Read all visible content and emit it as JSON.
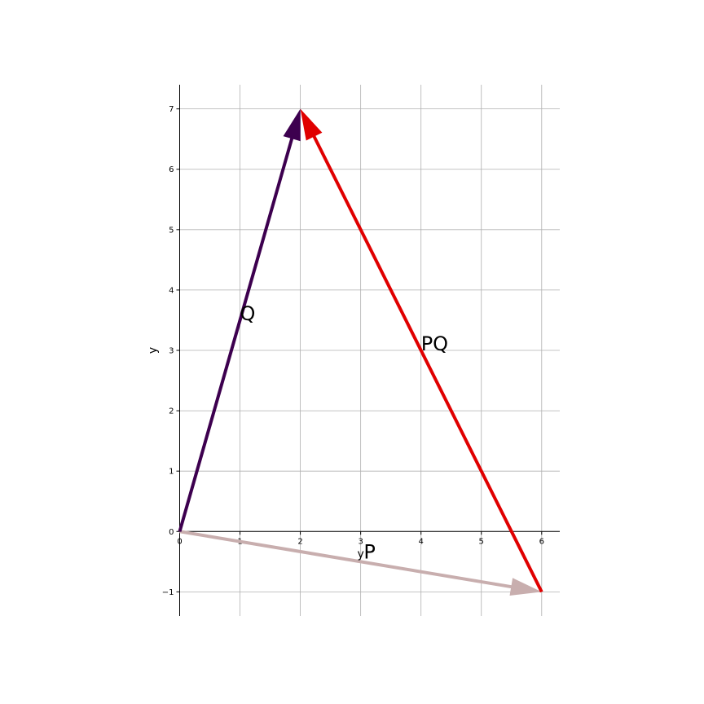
{
  "chart_data": {
    "type": "vector",
    "title": "",
    "xlabel": "y",
    "ylabel": "y",
    "xlim": [
      0,
      6.3
    ],
    "ylim": [
      -1.4,
      7.4
    ],
    "x_ticks": [
      0,
      1,
      2,
      3,
      4,
      5,
      6
    ],
    "y_ticks": [
      -1,
      0,
      1,
      2,
      3,
      4,
      5,
      6,
      7
    ],
    "x_tick_labels": [
      "0",
      "1",
      "2",
      "3",
      "4",
      "5",
      "6"
    ],
    "y_tick_labels": [
      "−1",
      "0",
      "1",
      "2",
      "3",
      "4",
      "5",
      "6",
      "7"
    ],
    "grid": true,
    "vectors": [
      {
        "label": "P",
        "start": [
          0,
          0
        ],
        "end": [
          6,
          -1
        ],
        "color": "#c8aeae",
        "label_at": [
          3.05,
          -0.45
        ]
      },
      {
        "label": "Q",
        "start": [
          0,
          0
        ],
        "end": [
          2,
          7
        ],
        "color": "#3d004f",
        "label_at": [
          1.0,
          3.5
        ]
      },
      {
        "label": "PQ",
        "start": [
          6,
          -1
        ],
        "end": [
          2,
          7
        ],
        "color": "#e00000",
        "label_at": [
          4.0,
          3.0
        ]
      }
    ]
  }
}
